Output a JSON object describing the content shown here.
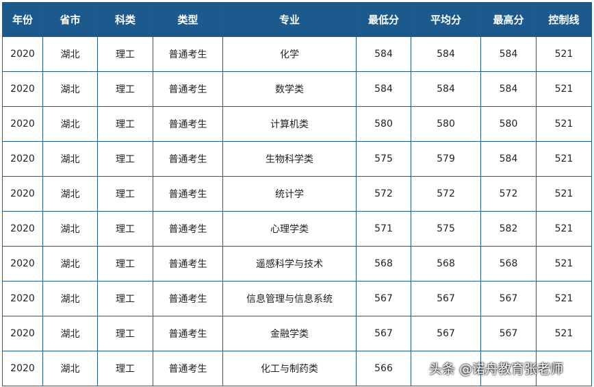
{
  "table": {
    "headers": [
      "年份",
      "省市",
      "科类",
      "类型",
      "专业",
      "最低分",
      "平均分",
      "最高分",
      "控制线"
    ],
    "rows": [
      [
        "2020",
        "湖北",
        "理工",
        "普通考生",
        "化学",
        "584",
        "584",
        "584",
        "521"
      ],
      [
        "2020",
        "湖北",
        "理工",
        "普通考生",
        "数学类",
        "584",
        "584",
        "584",
        "521"
      ],
      [
        "2020",
        "湖北",
        "理工",
        "普通考生",
        "计算机类",
        "580",
        "580",
        "580",
        "521"
      ],
      [
        "2020",
        "湖北",
        "理工",
        "普通考生",
        "生物科学类",
        "575",
        "579",
        "584",
        "521"
      ],
      [
        "2020",
        "湖北",
        "理工",
        "普通考生",
        "统计学",
        "572",
        "572",
        "572",
        "521"
      ],
      [
        "2020",
        "湖北",
        "理工",
        "普通考生",
        "心理学类",
        "571",
        "575",
        "582",
        "521"
      ],
      [
        "2020",
        "湖北",
        "理工",
        "普通考生",
        "遥感科学与技术",
        "568",
        "568",
        "568",
        "521"
      ],
      [
        "2020",
        "湖北",
        "理工",
        "普通考生",
        "信息管理与信息系统",
        "567",
        "567",
        "567",
        "521"
      ],
      [
        "2020",
        "湖北",
        "理工",
        "普通考生",
        "金融学类",
        "567",
        "567",
        "567",
        "521"
      ],
      [
        "2020",
        "湖北",
        "理工",
        "普通考生",
        "化工与制药类",
        "566",
        "",
        "",
        ""
      ]
    ]
  },
  "watermark": "头条 @诺舟教育张老师",
  "colors": {
    "header_bg": "#1c5a8d",
    "header_text": "#ffffff",
    "border": "#1f5b8c"
  }
}
